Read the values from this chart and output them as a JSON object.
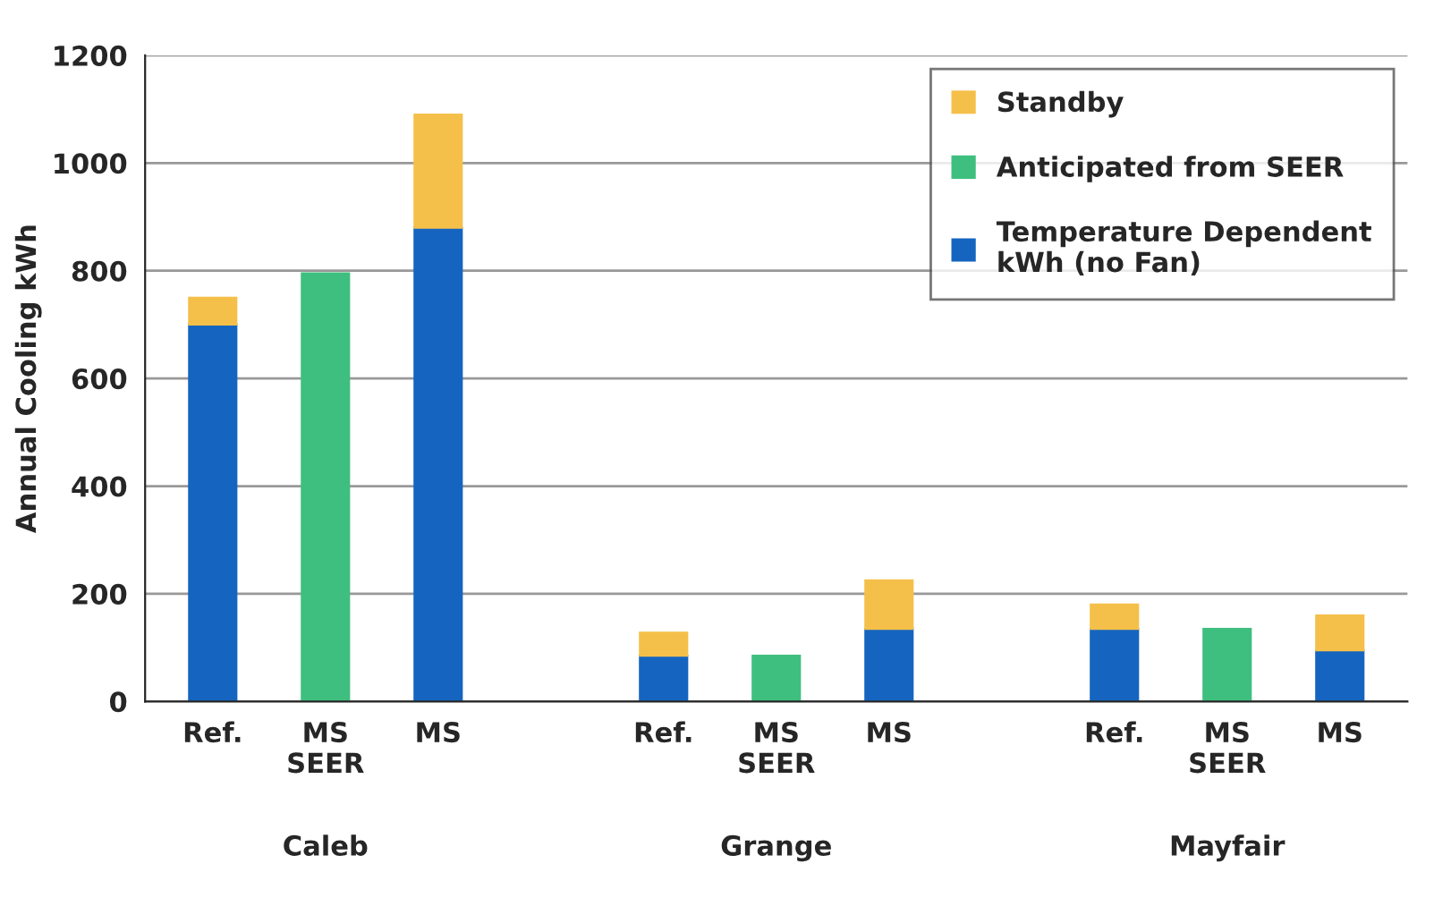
{
  "chart_data": {
    "type": "bar",
    "stacked": true,
    "ylabel": "Annual Cooling kWh",
    "categories": [
      "Ref.",
      "MS\nSEER",
      "MS",
      null,
      "Ref.",
      "MS\nSEER",
      "MS",
      null,
      "Ref.",
      "MS\nSEER",
      "MS"
    ],
    "series": [
      {
        "name": "Temperature Dependent\nkWh (no Fan)",
        "color": "#1565c0",
        "values": [
          700,
          null,
          880,
          null,
          85,
          null,
          135,
          null,
          135,
          null,
          95
        ]
      },
      {
        "name": "Anticipated from SEER",
        "color": "#3fbf7f",
        "values": [
          null,
          795,
          null,
          null,
          null,
          85,
          null,
          null,
          null,
          135,
          null
        ]
      },
      {
        "name": "Standby",
        "color": "#f5c04a",
        "values": [
          50,
          null,
          210,
          null,
          43,
          null,
          90,
          null,
          45,
          null,
          65
        ]
      }
    ],
    "annotations": [
      "Caleb",
      "Grange",
      "Mayfair"
    ],
    "ylim": [
      0,
      1200
    ],
    "yticks": [
      0,
      200,
      400,
      600,
      800,
      1000,
      1200
    ],
    "grid": "y",
    "legend": "top right"
  }
}
